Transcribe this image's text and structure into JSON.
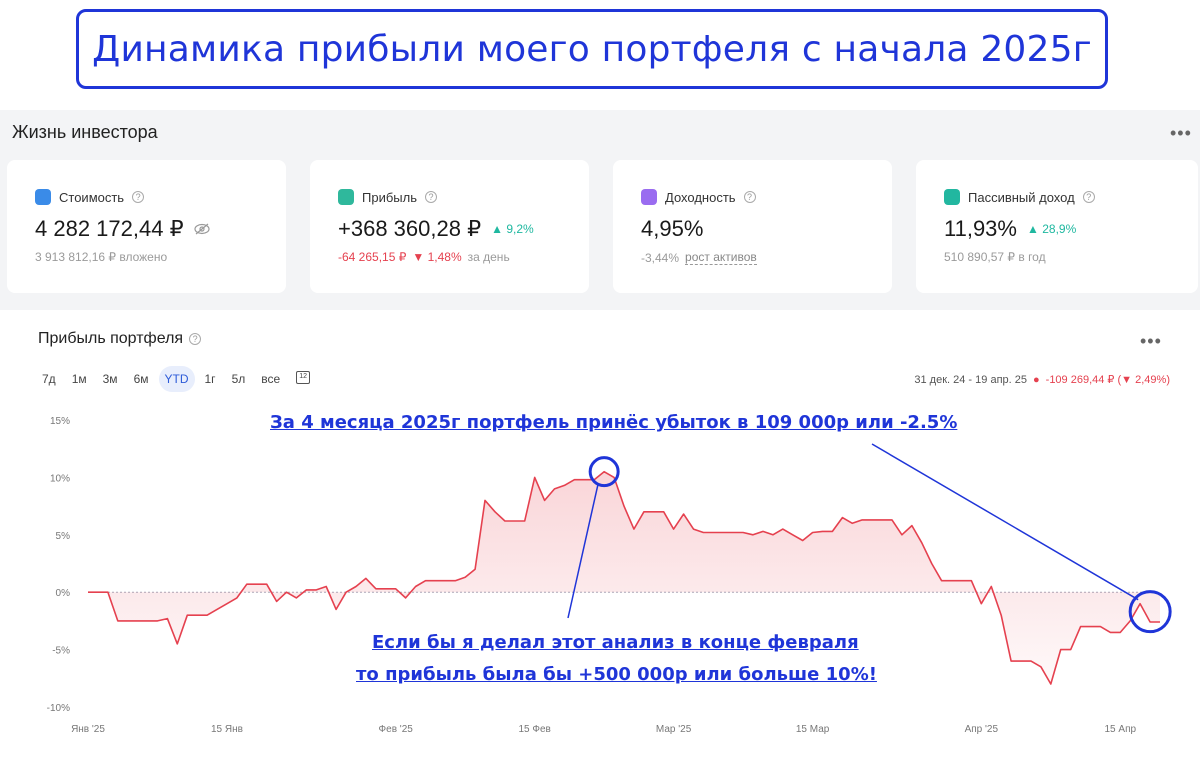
{
  "banner": {
    "title": "Динамика прибыли моего портфеля с начала 2025г"
  },
  "app": {
    "title": "Жизнь инвестора"
  },
  "cards": [
    {
      "label": "Стоимость",
      "value": "4 282 172,44 ₽",
      "sub": "3 913 812,16 ₽ вложено",
      "icon": "wallet-icon",
      "color": "#3a8be8"
    },
    {
      "label": "Прибыль",
      "value": "+368 360,28 ₽",
      "badge": "9,2%",
      "sub_value": "-64 265,15 ₽",
      "sub_pct": "1,48%",
      "sub_suffix": "за день",
      "icon": "chart-icon",
      "color": "#2fb89c"
    },
    {
      "label": "Доходность",
      "value": "4,95%",
      "sub_value": "-3,44%",
      "sub_link": "рост активов",
      "icon": "calendar-icon",
      "color": "#9a6cf0"
    },
    {
      "label": "Пассивный доход",
      "value": "11,93%",
      "badge": "28,9%",
      "sub": "510 890,57 ₽ в год",
      "icon": "piggy-bank-icon",
      "color": "#22b7a0"
    }
  ],
  "chart_panel": {
    "title": "Прибыль портфеля",
    "periods": [
      "7д",
      "1м",
      "3м",
      "6м",
      "YTD",
      "1г",
      "5л",
      "все"
    ],
    "active_period": "YTD",
    "range_label": "31 дек. 24 - 19 апр. 25",
    "range_value": "-109 269,44 ₽",
    "range_pct": "2,49%"
  },
  "annotations": {
    "top": "За 4 месяца 2025г портфель принёс убыток в 109 000р или -2.5%",
    "bottom_line1": "Если бы я делал этот анализ в конце февраля",
    "bottom_line2": "то прибыль была бы +500 000р или больше 10%!"
  },
  "chart_data": {
    "type": "area",
    "y_ticks": [
      "15%",
      "10%",
      "5%",
      "0%",
      "-5%",
      "-10%"
    ],
    "ylim": [
      -10,
      15
    ],
    "x_ticks": [
      "Янв '25",
      "15 Янв",
      "Фев '25",
      "15 Фев",
      "Мар '25",
      "15 Мар",
      "Апр '25",
      "15 Апр"
    ],
    "x_tick_days": [
      1,
      15,
      32,
      46,
      60,
      74,
      91,
      105
    ],
    "x_range": [
      1,
      109
    ],
    "series": [
      {
        "color": "#e5414f",
        "points": [
          [
            1,
            0
          ],
          [
            2,
            0
          ],
          [
            3,
            0
          ],
          [
            4,
            -2.5
          ],
          [
            5,
            -2.5
          ],
          [
            6,
            -2.5
          ],
          [
            7,
            -2.5
          ],
          [
            8,
            -2.5
          ],
          [
            9,
            -2.3
          ],
          [
            10,
            -4.5
          ],
          [
            11,
            -2
          ],
          [
            12,
            -2
          ],
          [
            13,
            -2
          ],
          [
            14,
            -1.5
          ],
          [
            15,
            -1
          ],
          [
            16,
            -0.5
          ],
          [
            17,
            0.7
          ],
          [
            18,
            0.7
          ],
          [
            19,
            0.7
          ],
          [
            20,
            -0.8
          ],
          [
            21,
            0
          ],
          [
            22,
            -0.5
          ],
          [
            23,
            0.2
          ],
          [
            24,
            0.2
          ],
          [
            25,
            0.5
          ],
          [
            26,
            -1.5
          ],
          [
            27,
            0
          ],
          [
            28,
            0.5
          ],
          [
            29,
            1.2
          ],
          [
            30,
            0.3
          ],
          [
            31,
            0.3
          ],
          [
            32,
            0.3
          ],
          [
            33,
            -0.5
          ],
          [
            34,
            0.5
          ],
          [
            35,
            1
          ],
          [
            36,
            1
          ],
          [
            37,
            1
          ],
          [
            38,
            1
          ],
          [
            39,
            1.3
          ],
          [
            40,
            2
          ],
          [
            41,
            8
          ],
          [
            42,
            7
          ],
          [
            43,
            6.2
          ],
          [
            44,
            6.2
          ],
          [
            45,
            6.2
          ],
          [
            46,
            10
          ],
          [
            47,
            8
          ],
          [
            48,
            9
          ],
          [
            49,
            9.3
          ],
          [
            50,
            9.8
          ],
          [
            51,
            9.8
          ],
          [
            52,
            9.8
          ],
          [
            53,
            10.5
          ],
          [
            54,
            10
          ],
          [
            55,
            7.5
          ],
          [
            56,
            5.5
          ],
          [
            57,
            7
          ],
          [
            58,
            7
          ],
          [
            59,
            7
          ],
          [
            60,
            5.5
          ],
          [
            61,
            6.8
          ],
          [
            62,
            5.5
          ],
          [
            63,
            5.2
          ],
          [
            64,
            5.2
          ],
          [
            65,
            5.2
          ],
          [
            66,
            5.2
          ],
          [
            67,
            5.2
          ],
          [
            68,
            5
          ],
          [
            69,
            5.3
          ],
          [
            70,
            5
          ],
          [
            71,
            5.5
          ],
          [
            72,
            5
          ],
          [
            73,
            4.5
          ],
          [
            74,
            5.2
          ],
          [
            75,
            5.3
          ],
          [
            76,
            5.3
          ],
          [
            77,
            6.5
          ],
          [
            78,
            6
          ],
          [
            79,
            6.3
          ],
          [
            80,
            6.3
          ],
          [
            81,
            6.3
          ],
          [
            82,
            6.3
          ],
          [
            83,
            5
          ],
          [
            84,
            5.8
          ],
          [
            85,
            4.3
          ],
          [
            86,
            2.5
          ],
          [
            87,
            1
          ],
          [
            88,
            1
          ],
          [
            89,
            1
          ],
          [
            90,
            1
          ],
          [
            91,
            -1
          ],
          [
            92,
            0.5
          ],
          [
            93,
            -2
          ],
          [
            94,
            -6
          ],
          [
            95,
            -6
          ],
          [
            96,
            -6
          ],
          [
            97,
            -6.5
          ],
          [
            98,
            -8
          ],
          [
            99,
            -5
          ],
          [
            100,
            -5
          ],
          [
            101,
            -3
          ],
          [
            102,
            -3
          ],
          [
            103,
            -3
          ],
          [
            104,
            -3.5
          ],
          [
            105,
            -3.5
          ],
          [
            106,
            -2.5
          ],
          [
            107,
            -1
          ],
          [
            108,
            -2.6
          ],
          [
            109,
            -2.6
          ]
        ]
      }
    ],
    "grid": false,
    "zero_line": true
  }
}
